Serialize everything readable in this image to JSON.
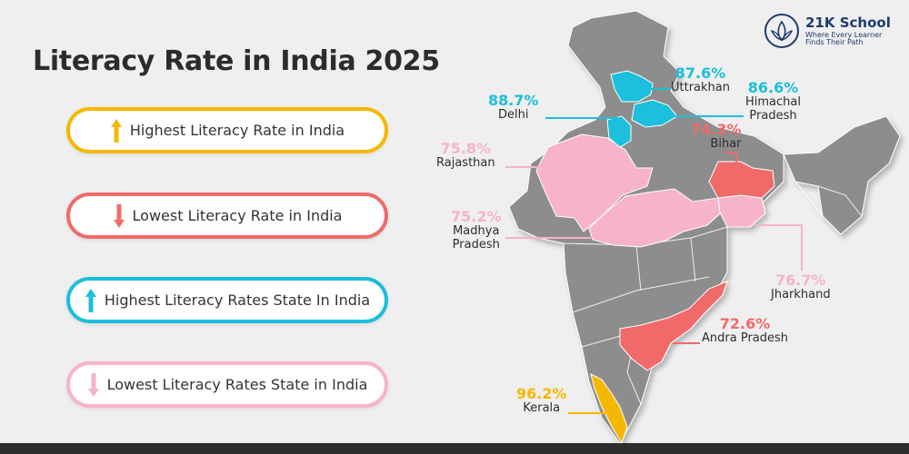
{
  "title": "Literacy Rate in India 2025",
  "logo": {
    "name": "21K School",
    "tagline1": "Where Every Learner",
    "tagline2": "Finds Their Path",
    "color": "#1f3a6e"
  },
  "legend": [
    {
      "label": "Highest Literacy Rate in India",
      "color": "#f5b800",
      "arrow": "up"
    },
    {
      "label": "Lowest Literacy Rate in India",
      "color": "#f06a6a",
      "arrow": "down"
    },
    {
      "label": "Highest Literacy Rates State In India",
      "color": "#1bbfdc",
      "arrow": "up"
    },
    {
      "label": "Lowest Literacy Rates State in India",
      "color": "#f7b3c9",
      "arrow": "down"
    }
  ],
  "states": {
    "uttrakhan": {
      "pct": "87.6%",
      "name": "Uttrakhan",
      "color": "#1bbfdc"
    },
    "himachal": {
      "pct": "86.6%",
      "name": "Himachal Pradesh",
      "name1": "Himachal",
      "name2": "Pradesh",
      "color": "#1bbfdc"
    },
    "delhi": {
      "pct": "88.7%",
      "name": "Delhi",
      "color": "#1bbfdc"
    },
    "bihar": {
      "pct": "74.3%",
      "name": "Bihar",
      "color": "#f06a6a"
    },
    "rajasthan": {
      "pct": "75.8%",
      "name": "Rajasthan",
      "color": "#f7b3c9"
    },
    "madhya_pradesh": {
      "pct": "75.2%",
      "name": "Madhya Pradesh",
      "name1": "Madhya",
      "name2": "Pradesh",
      "color": "#f7b3c9"
    },
    "jharkhand": {
      "pct": "76.7%",
      "name": "Jharkhand",
      "color": "#f7b3c9"
    },
    "andra_pradesh": {
      "pct": "72.6%",
      "name": "Andra Pradesh",
      "color": "#f06a6a"
    },
    "kerala": {
      "pct": "96.2%",
      "name": "Kerala",
      "color": "#f5b800"
    }
  },
  "map_base_color": "#8d8d8d"
}
